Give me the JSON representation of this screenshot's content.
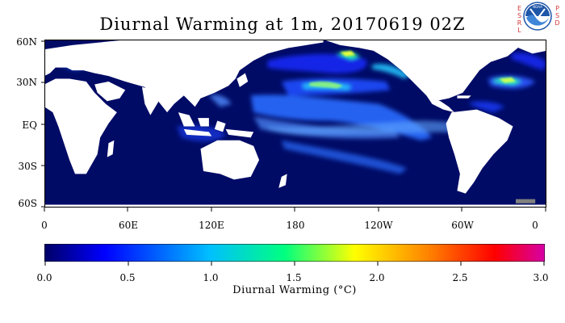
{
  "title": "Diurnal Warming at 1m, 20170619 02Z",
  "logo": {
    "left_letters": "ESRL",
    "right_letters": "PSD",
    "agency": "NOAA",
    "accent": "#1e56a8",
    "letter_color": "#d43a3a"
  },
  "map": {
    "ocean_color": "#000b66",
    "land_color": "#ffffff",
    "lat_labels": [
      "60N",
      "30N",
      "EQ",
      "30S",
      "60S"
    ],
    "lon_labels": [
      "0",
      "60E",
      "120E",
      "180",
      "120W",
      "60W",
      "0"
    ]
  },
  "colorbar": {
    "ticks": [
      "0.0",
      "0.5",
      "1.0",
      "1.5",
      "2.0",
      "2.5",
      "3.0"
    ],
    "label": "Diurnal Warming (°C)",
    "range": [
      0,
      3
    ],
    "colors": [
      "#000066",
      "#0000ff",
      "#00bfff",
      "#00ff80",
      "#ffff00",
      "#ff8000",
      "#ff0000",
      "#d600a6"
    ]
  }
}
